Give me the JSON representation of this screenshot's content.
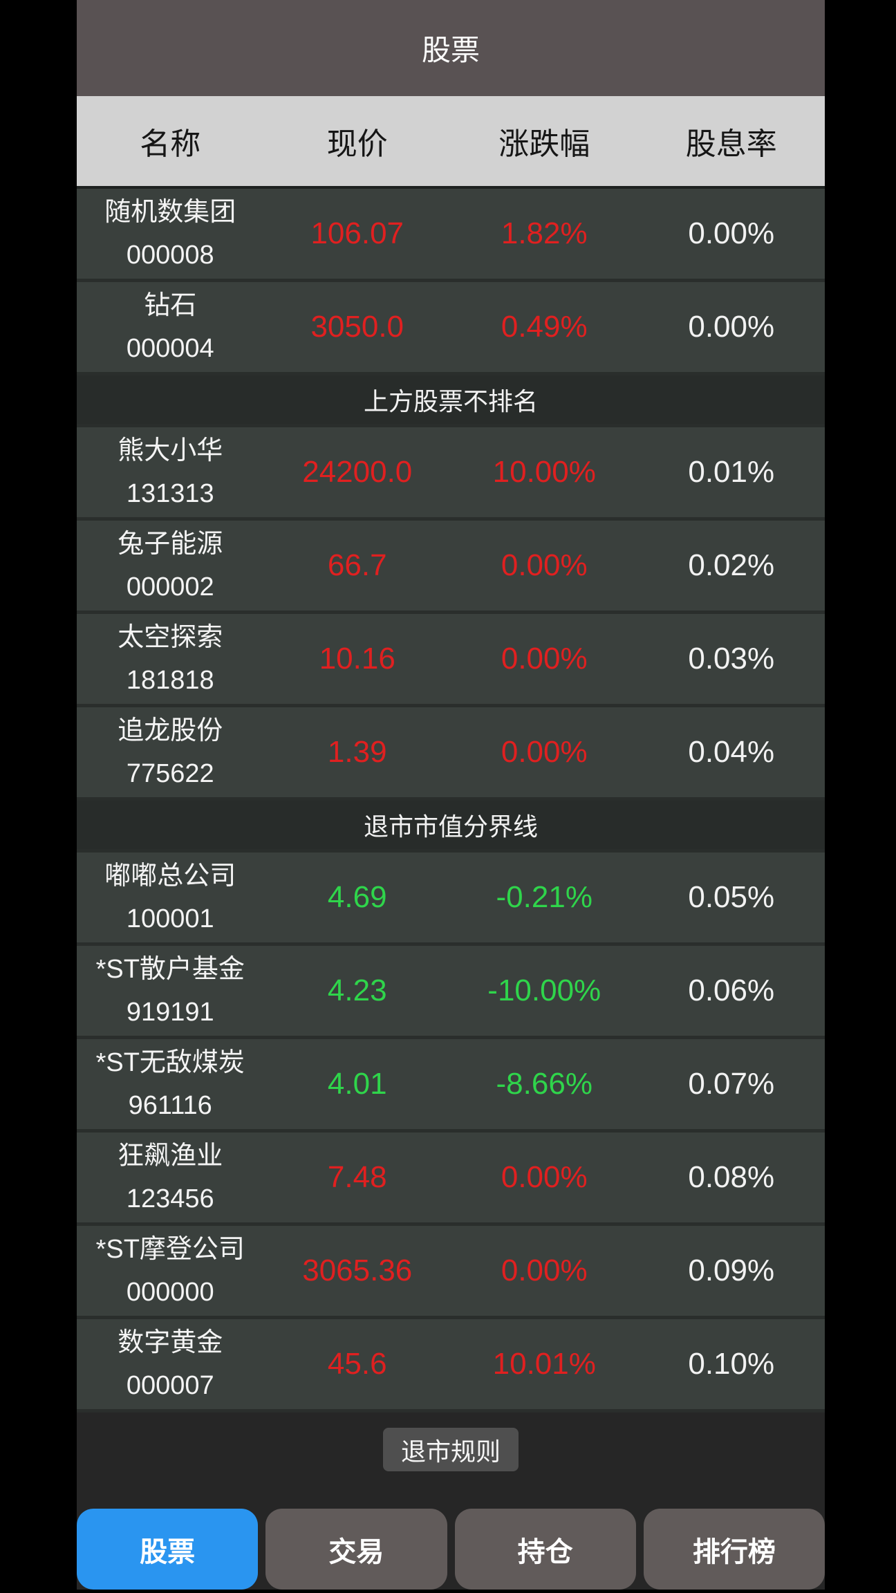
{
  "title_bar": {
    "title": "股票"
  },
  "table": {
    "columns": [
      "名称",
      "现价",
      "涨跌幅",
      "股息率"
    ],
    "items": [
      {
        "type": "stock",
        "name": "随机数集团",
        "code": "000008",
        "price": "106.07",
        "change": "1.82%",
        "dividend": "0.00%",
        "trend": "up"
      },
      {
        "type": "stock",
        "name": "钻石",
        "code": "000004",
        "price": "3050.0",
        "change": "0.49%",
        "dividend": "0.00%",
        "trend": "up"
      },
      {
        "type": "band",
        "label": "上方股票不排名"
      },
      {
        "type": "stock",
        "name": "熊大小华",
        "code": "131313",
        "price": "24200.0",
        "change": "10.00%",
        "dividend": "0.01%",
        "trend": "up"
      },
      {
        "type": "stock",
        "name": "兔子能源",
        "code": "000002",
        "price": "66.7",
        "change": "0.00%",
        "dividend": "0.02%",
        "trend": "up"
      },
      {
        "type": "stock",
        "name": "太空探索",
        "code": "181818",
        "price": "10.16",
        "change": "0.00%",
        "dividend": "0.03%",
        "trend": "up"
      },
      {
        "type": "stock",
        "name": "追龙股份",
        "code": "775622",
        "price": "1.39",
        "change": "0.00%",
        "dividend": "0.04%",
        "trend": "up"
      },
      {
        "type": "band",
        "label": "退市市值分界线"
      },
      {
        "type": "stock",
        "name": "嘟嘟总公司",
        "code": "100001",
        "price": "4.69",
        "change": "-0.21%",
        "dividend": "0.05%",
        "trend": "down"
      },
      {
        "type": "stock",
        "name": "*ST散户基金",
        "code": "919191",
        "price": "4.23",
        "change": "-10.00%",
        "dividend": "0.06%",
        "trend": "down"
      },
      {
        "type": "stock",
        "name": "*ST无敌煤炭",
        "code": "961116",
        "price": "4.01",
        "change": "-8.66%",
        "dividend": "0.07%",
        "trend": "down"
      },
      {
        "type": "stock",
        "name": "狂飙渔业",
        "code": "123456",
        "price": "7.48",
        "change": "0.00%",
        "dividend": "0.08%",
        "trend": "up"
      },
      {
        "type": "stock",
        "name": "*ST摩登公司",
        "code": "000000",
        "price": "3065.36",
        "change": "0.00%",
        "dividend": "0.09%",
        "trend": "up"
      },
      {
        "type": "stock",
        "name": "数字黄金",
        "code": "000007",
        "price": "45.6",
        "change": "10.01%",
        "dividend": "0.10%",
        "trend": "up"
      }
    ]
  },
  "footer": {
    "delist_rules_button": "退市规则"
  },
  "tab_bar": {
    "tabs": [
      {
        "label": "股票",
        "active": true
      },
      {
        "label": "交易",
        "active": false
      },
      {
        "label": "持仓",
        "active": false
      },
      {
        "label": "排行榜",
        "active": false
      }
    ]
  },
  "colors": {
    "up_red": "#e02020",
    "down_green": "#2fd54b",
    "active_tab_blue": "#2a95f0",
    "row_background": "#3a403d",
    "header_background": "#d2d2d2",
    "title_background": "#595253"
  }
}
